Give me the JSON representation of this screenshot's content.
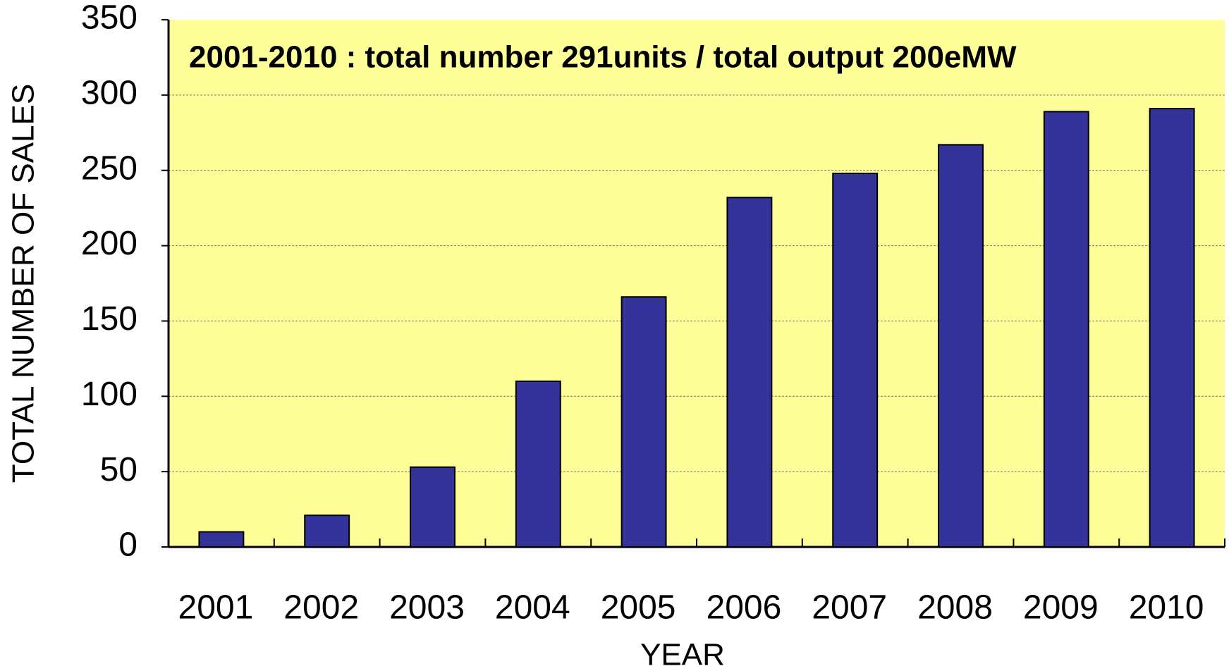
{
  "chart_data": {
    "type": "bar",
    "annotation": "2001-2010 : total number 291units / total output 200eMW",
    "xlabel": "YEAR",
    "ylabel": "TOTAL NUMBER OF SALES",
    "categories": [
      "2001",
      "2002",
      "2003",
      "2004",
      "2005",
      "2006",
      "2007",
      "2008",
      "2009",
      "2010"
    ],
    "values": [
      10,
      21,
      53,
      110,
      166,
      232,
      248,
      267,
      289,
      291
    ],
    "color": "#333399",
    "ylim": [
      0,
      350
    ],
    "yticks": [
      0,
      50,
      100,
      150,
      200,
      250,
      300,
      350
    ],
    "grid": true
  }
}
